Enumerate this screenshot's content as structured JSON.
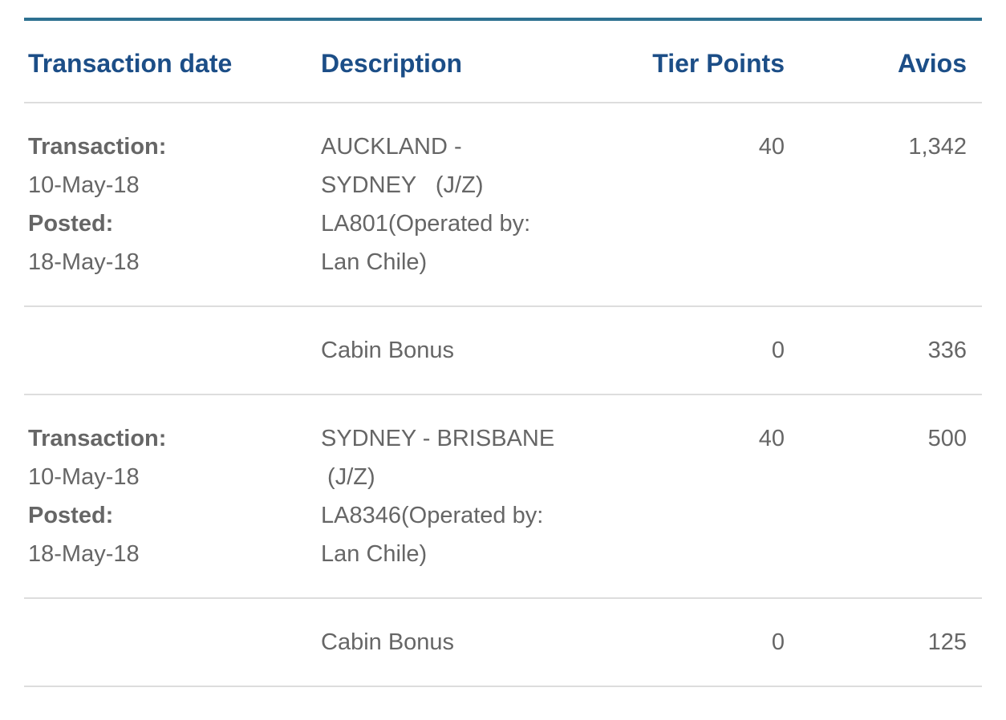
{
  "colors": {
    "accent_line": "#2e7191",
    "header_text": "#1c4e87",
    "body_text": "#666666",
    "separator": "#dddddd"
  },
  "table": {
    "columns": [
      {
        "label": "Transaction date",
        "align": "left"
      },
      {
        "label": "Description",
        "align": "left"
      },
      {
        "label": "Tier Points",
        "align": "right"
      },
      {
        "label": "Avios",
        "align": "right"
      }
    ],
    "rows": [
      {
        "type": "flight",
        "transaction_label": "Transaction:",
        "transaction_date": "10-May-18",
        "posted_label": "Posted:",
        "posted_date": "18-May-18",
        "description_lines": [
          "AUCKLAND -",
          "SYDNEY   (J/Z)",
          "LA801(Operated by:",
          "Lan Chile)"
        ],
        "tier_points": "40",
        "avios": "1,342"
      },
      {
        "type": "bonus",
        "description_lines": [
          "Cabin Bonus"
        ],
        "tier_points": "0",
        "avios": "336"
      },
      {
        "type": "flight",
        "transaction_label": "Transaction:",
        "transaction_date": "10-May-18",
        "posted_label": "Posted:",
        "posted_date": "18-May-18",
        "description_lines": [
          "SYDNEY - BRISBANE",
          " (J/Z)",
          "LA8346(Operated by:",
          "Lan Chile)"
        ],
        "tier_points": "40",
        "avios": "500"
      },
      {
        "type": "bonus",
        "description_lines": [
          "Cabin Bonus"
        ],
        "tier_points": "0",
        "avios": "125"
      }
    ]
  }
}
